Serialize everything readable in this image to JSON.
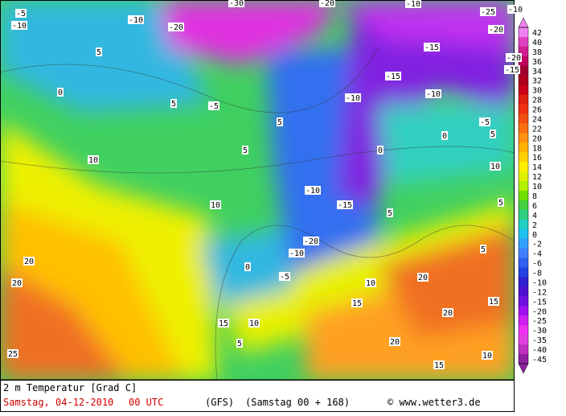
{
  "legend": {
    "items": [
      {
        "label": "42",
        "color": "#f080f0"
      },
      {
        "label": "40",
        "color": "#e040c0"
      },
      {
        "label": "38",
        "color": "#d02090"
      },
      {
        "label": "36",
        "color": "#c00060"
      },
      {
        "label": "34",
        "color": "#a00030"
      },
      {
        "label": "32",
        "color": "#b00020"
      },
      {
        "label": "30",
        "color": "#c80018"
      },
      {
        "label": "28",
        "color": "#e02010"
      },
      {
        "label": "26",
        "color": "#f03010"
      },
      {
        "label": "24",
        "color": "#f05010"
      },
      {
        "label": "22",
        "color": "#f87010"
      },
      {
        "label": "20",
        "color": "#ff9010"
      },
      {
        "label": "18",
        "color": "#ffb000"
      },
      {
        "label": "16",
        "color": "#ffd000"
      },
      {
        "label": "14",
        "color": "#ffee00"
      },
      {
        "label": "12",
        "color": "#e0f000"
      },
      {
        "label": "10",
        "color": "#b0f000"
      },
      {
        "label": "8",
        "color": "#70e000"
      },
      {
        "label": "6",
        "color": "#40d040"
      },
      {
        "label": "4",
        "color": "#30d080"
      },
      {
        "label": "2",
        "color": "#20d0c0"
      },
      {
        "label": "0",
        "color": "#20c0f0"
      },
      {
        "label": "-2",
        "color": "#30a0ff"
      },
      {
        "label": "-4",
        "color": "#4080ff"
      },
      {
        "label": "-6",
        "color": "#3060f0"
      },
      {
        "label": "-8",
        "color": "#2040e0"
      },
      {
        "label": "-10",
        "color": "#3020d0"
      },
      {
        "label": "-12",
        "color": "#5010d0"
      },
      {
        "label": "-15",
        "color": "#7010e0"
      },
      {
        "label": "-20",
        "color": "#a010f0"
      },
      {
        "label": "-25",
        "color": "#d020f0"
      },
      {
        "label": "-30",
        "color": "#f030f0"
      },
      {
        "label": "-35",
        "color": "#e040e0"
      },
      {
        "label": "-40",
        "color": "#c030c0"
      },
      {
        "label": "-45",
        "color": "#9020a0"
      }
    ]
  },
  "contour_labels": [
    "-5",
    "-10",
    "-10",
    "-20",
    "-30",
    "-20",
    "-10",
    "-25",
    "-10",
    "-20",
    "-15",
    "-20",
    "-15",
    "-10",
    "-15",
    "-10",
    "-5",
    "0",
    "5",
    "10",
    "5",
    "0",
    "-15",
    "-10",
    "-20",
    "-10",
    "-5",
    "0",
    "5",
    "5",
    "5",
    "0",
    "10",
    "10",
    "20",
    "20",
    "25",
    "15",
    "10",
    "5",
    "15",
    "20",
    "20",
    "15",
    "10",
    "15",
    "20",
    "5",
    "10",
    "5",
    "-5",
    "5"
  ],
  "footer": {
    "title": "2 m Temperatur [Grad C]",
    "date": "Samstag, 04-12-2010",
    "time": "00 UTC",
    "model": "(GFS)",
    "run": "(Samstag 00 + 168)",
    "credit": "© www.wetter3.de"
  }
}
